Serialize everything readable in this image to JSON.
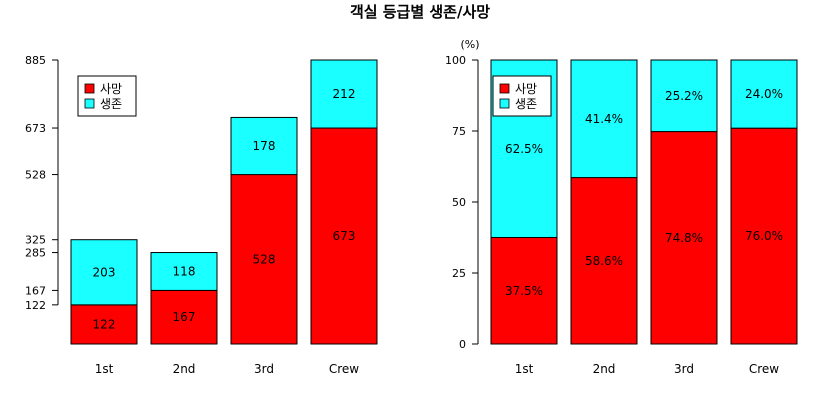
{
  "title": "객실 등급별 생존/사망",
  "colors": {
    "death": "#ff0000",
    "survive": "#1affff",
    "stroke": "#000000"
  },
  "chart_data": [
    {
      "type": "bar",
      "stacked": true,
      "categories": [
        "1st",
        "2nd",
        "3rd",
        "Crew"
      ],
      "series": [
        {
          "name": "사망",
          "values": [
            122,
            167,
            528,
            673
          ]
        },
        {
          "name": "생존",
          "values": [
            203,
            118,
            178,
            212
          ]
        }
      ],
      "data_labels": {
        "사망": [
          "122",
          "167",
          "528",
          "673"
        ],
        "생존": [
          "203",
          "118",
          "178",
          "212"
        ]
      },
      "ylim": [
        0,
        885
      ],
      "yticks": [
        122,
        167,
        285,
        325,
        528,
        673,
        885
      ],
      "ylabel": "",
      "legend": "top-left",
      "grid": false
    },
    {
      "type": "bar",
      "stacked": true,
      "percent": true,
      "categories": [
        "1st",
        "2nd",
        "3rd",
        "Crew"
      ],
      "series": [
        {
          "name": "사망",
          "values": [
            37.5,
            58.6,
            74.8,
            76.0
          ]
        },
        {
          "name": "생존",
          "values": [
            62.5,
            41.4,
            25.2,
            24.0
          ]
        }
      ],
      "data_labels": {
        "사망": [
          "37.5%",
          "58.6%",
          "74.8%",
          "76.0%"
        ],
        "생존": [
          "62.5%",
          "41.4%",
          "25.2%",
          "24.0%"
        ]
      },
      "ylim": [
        0,
        100
      ],
      "yticks": [
        0,
        25,
        50,
        75,
        100
      ],
      "ylabel": "(%)",
      "legend": "top-left",
      "grid": false
    }
  ]
}
